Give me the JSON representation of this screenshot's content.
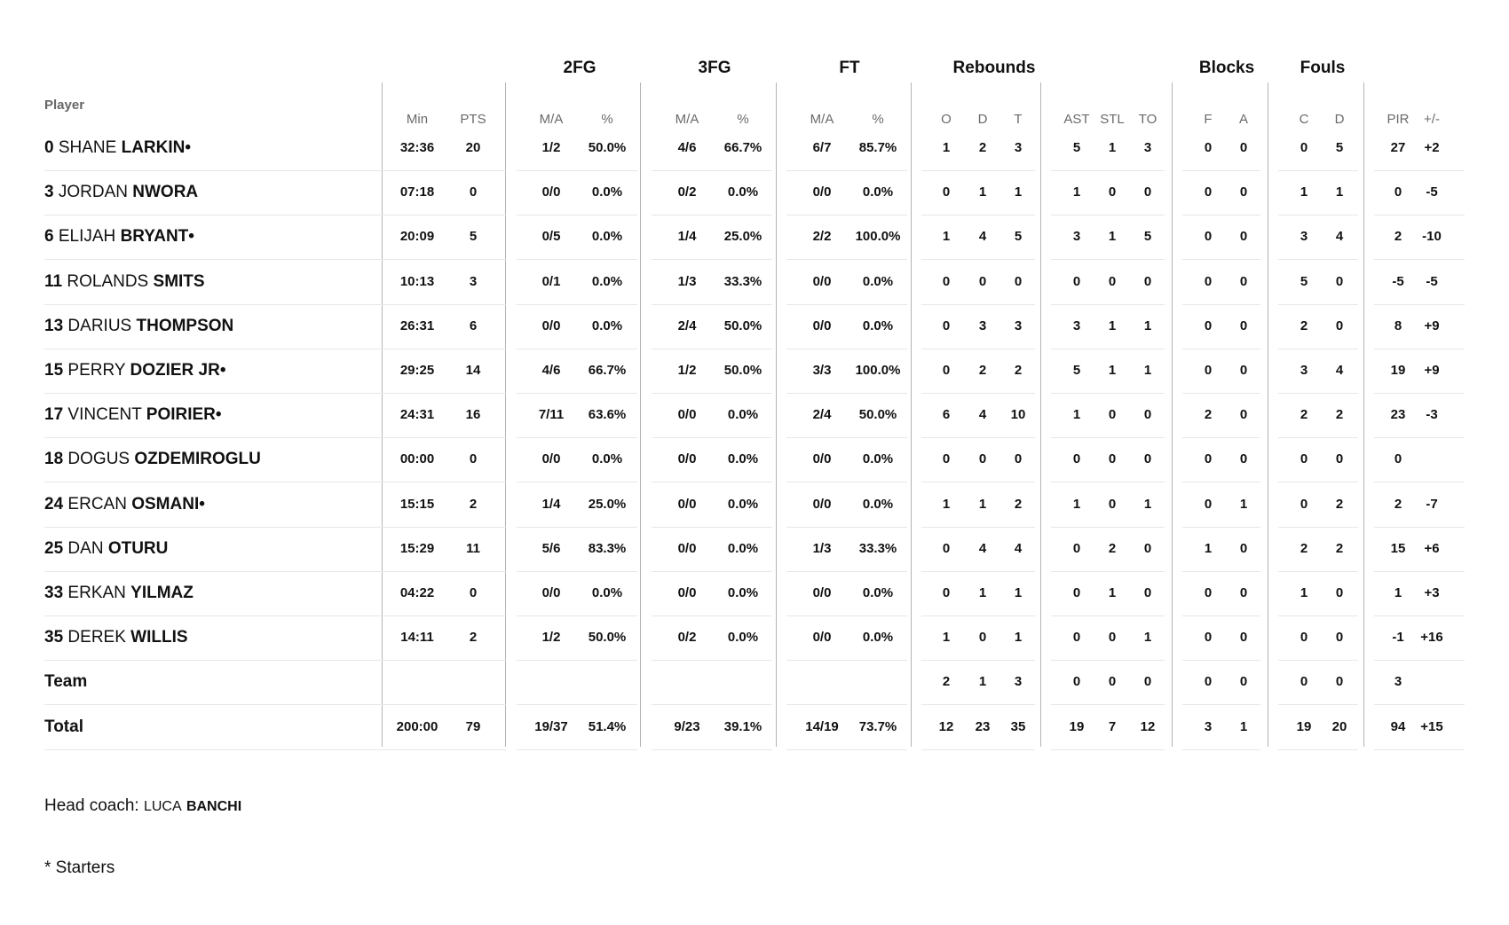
{
  "groups": [
    "2FG",
    "3FG",
    "FT",
    "Rebounds",
    "Blocks",
    "Fouls"
  ],
  "player_header": "Player",
  "sub_headers": [
    "Min",
    "PTS",
    "M/A",
    "%",
    "M/A",
    "%",
    "M/A",
    "%",
    "O",
    "D",
    "T",
    "AST",
    "STL",
    "TO",
    "F",
    "A",
    "C",
    "D",
    "PIR",
    "+/-"
  ],
  "rows": [
    {
      "num": "0",
      "first": "SHANE",
      "last": "LARKIN",
      "starter": true,
      "stats": [
        "32:36",
        "20",
        "1/2",
        "50.0%",
        "4/6",
        "66.7%",
        "6/7",
        "85.7%",
        "1",
        "2",
        "3",
        "5",
        "1",
        "3",
        "0",
        "0",
        "0",
        "5",
        "27",
        "+2"
      ]
    },
    {
      "num": "3",
      "first": "JORDAN",
      "last": "NWORA",
      "starter": false,
      "stats": [
        "07:18",
        "0",
        "0/0",
        "0.0%",
        "0/2",
        "0.0%",
        "0/0",
        "0.0%",
        "0",
        "1",
        "1",
        "1",
        "0",
        "0",
        "0",
        "0",
        "1",
        "1",
        "0",
        "-5"
      ]
    },
    {
      "num": "6",
      "first": "ELIJAH",
      "last": "BRYANT",
      "starter": true,
      "stats": [
        "20:09",
        "5",
        "0/5",
        "0.0%",
        "1/4",
        "25.0%",
        "2/2",
        "100.0%",
        "1",
        "4",
        "5",
        "3",
        "1",
        "5",
        "0",
        "0",
        "3",
        "4",
        "2",
        "-10"
      ]
    },
    {
      "num": "11",
      "first": "ROLANDS",
      "last": "SMITS",
      "starter": false,
      "stats": [
        "10:13",
        "3",
        "0/1",
        "0.0%",
        "1/3",
        "33.3%",
        "0/0",
        "0.0%",
        "0",
        "0",
        "0",
        "0",
        "0",
        "0",
        "0",
        "0",
        "5",
        "0",
        "-5",
        "-5"
      ]
    },
    {
      "num": "13",
      "first": "DARIUS",
      "last": "THOMPSON",
      "starter": false,
      "stats": [
        "26:31",
        "6",
        "0/0",
        "0.0%",
        "2/4",
        "50.0%",
        "0/0",
        "0.0%",
        "0",
        "3",
        "3",
        "3",
        "1",
        "1",
        "0",
        "0",
        "2",
        "0",
        "8",
        "+9"
      ]
    },
    {
      "num": "15",
      "first": "PERRY",
      "last": "DOZIER JR",
      "starter": true,
      "stats": [
        "29:25",
        "14",
        "4/6",
        "66.7%",
        "1/2",
        "50.0%",
        "3/3",
        "100.0%",
        "0",
        "2",
        "2",
        "5",
        "1",
        "1",
        "0",
        "0",
        "3",
        "4",
        "19",
        "+9"
      ]
    },
    {
      "num": "17",
      "first": "VINCENT",
      "last": "POIRIER",
      "starter": true,
      "stats": [
        "24:31",
        "16",
        "7/11",
        "63.6%",
        "0/0",
        "0.0%",
        "2/4",
        "50.0%",
        "6",
        "4",
        "10",
        "1",
        "0",
        "0",
        "2",
        "0",
        "2",
        "2",
        "23",
        "-3"
      ]
    },
    {
      "num": "18",
      "first": "DOGUS",
      "last": "OZDEMIROGLU",
      "starter": false,
      "stats": [
        "00:00",
        "0",
        "0/0",
        "0.0%",
        "0/0",
        "0.0%",
        "0/0",
        "0.0%",
        "0",
        "0",
        "0",
        "0",
        "0",
        "0",
        "0",
        "0",
        "0",
        "0",
        "0",
        ""
      ]
    },
    {
      "num": "24",
      "first": "ERCAN",
      "last": "OSMANI",
      "starter": true,
      "stats": [
        "15:15",
        "2",
        "1/4",
        "25.0%",
        "0/0",
        "0.0%",
        "0/0",
        "0.0%",
        "1",
        "1",
        "2",
        "1",
        "0",
        "1",
        "0",
        "1",
        "0",
        "2",
        "2",
        "-7"
      ]
    },
    {
      "num": "25",
      "first": "DAN",
      "last": "OTURU",
      "starter": false,
      "stats": [
        "15:29",
        "11",
        "5/6",
        "83.3%",
        "0/0",
        "0.0%",
        "1/3",
        "33.3%",
        "0",
        "4",
        "4",
        "0",
        "2",
        "0",
        "1",
        "0",
        "2",
        "2",
        "15",
        "+6"
      ]
    },
    {
      "num": "33",
      "first": "ERKAN",
      "last": "YILMAZ",
      "starter": false,
      "stats": [
        "04:22",
        "0",
        "0/0",
        "0.0%",
        "0/0",
        "0.0%",
        "0/0",
        "0.0%",
        "0",
        "1",
        "1",
        "0",
        "1",
        "0",
        "0",
        "0",
        "1",
        "0",
        "1",
        "+3"
      ]
    },
    {
      "num": "35",
      "first": "DEREK",
      "last": "WILLIS",
      "starter": false,
      "stats": [
        "14:11",
        "2",
        "1/2",
        "50.0%",
        "0/2",
        "0.0%",
        "0/0",
        "0.0%",
        "1",
        "0",
        "1",
        "0",
        "0",
        "1",
        "0",
        "0",
        "0",
        "0",
        "-1",
        "+16"
      ]
    },
    {
      "label": "Team",
      "stats": [
        "",
        "",
        "",
        "",
        "",
        "",
        "",
        "",
        "2",
        "1",
        "3",
        "0",
        "0",
        "0",
        "0",
        "0",
        "0",
        "0",
        "3",
        ""
      ]
    },
    {
      "label": "Total",
      "stats": [
        "200:00",
        "79",
        "19/37",
        "51.4%",
        "9/23",
        "39.1%",
        "14/19",
        "73.7%",
        "12",
        "23",
        "35",
        "19",
        "7",
        "12",
        "3",
        "1",
        "19",
        "20",
        "94",
        "+15"
      ]
    }
  ],
  "starter_mark": "•",
  "coach": {
    "label": "Head coach:",
    "first": "LUCA",
    "last": "BANCHI"
  },
  "starters_note": "* Starters"
}
